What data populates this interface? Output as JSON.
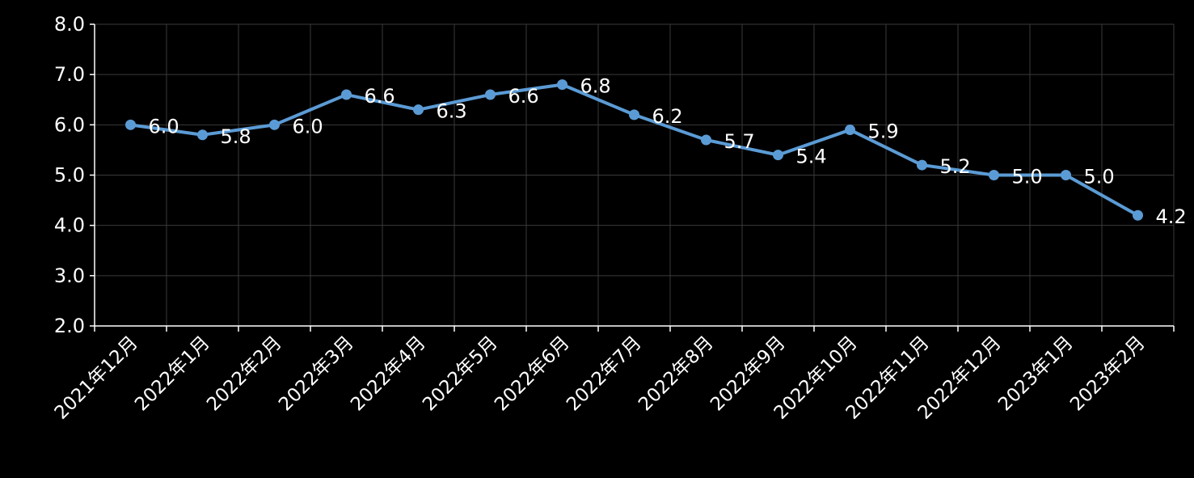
{
  "chart_data": {
    "type": "line",
    "title": "",
    "xlabel": "",
    "ylabel": "",
    "categories": [
      "2021年12月",
      "2022年1月",
      "2022年2月",
      "2022年3月",
      "2022年4月",
      "2022年5月",
      "2022年6月",
      "2022年7月",
      "2022年8月",
      "2022年9月",
      "2022年10月",
      "2022年11月",
      "2022年12月",
      "2023年1月",
      "2023年2月"
    ],
    "series": [
      {
        "values": [
          6.0,
          5.8,
          6.0,
          6.6,
          6.3,
          6.6,
          6.8,
          6.2,
          5.7,
          5.4,
          5.9,
          5.2,
          5.0,
          5.0,
          4.2
        ]
      }
    ],
    "data_labels": [
      "6.0",
      "5.8",
      "6.0",
      "6.6",
      "6.3",
      "6.6",
      "6.8",
      "6.2",
      "5.7",
      "5.4",
      "5.9",
      "5.2",
      "5.0",
      "5.0",
      "4.2"
    ],
    "ylim": [
      2.0,
      8.0
    ],
    "yticks": [
      "2.0",
      "3.0",
      "4.0",
      "5.0",
      "6.0",
      "7.0",
      "8.0"
    ],
    "grid": true,
    "legend": "none",
    "colors": {
      "background": "#000000",
      "line": "#5b9bd5",
      "grid": "#3a3a3a",
      "axis": "#ffffff",
      "text": "#ffffff"
    }
  }
}
